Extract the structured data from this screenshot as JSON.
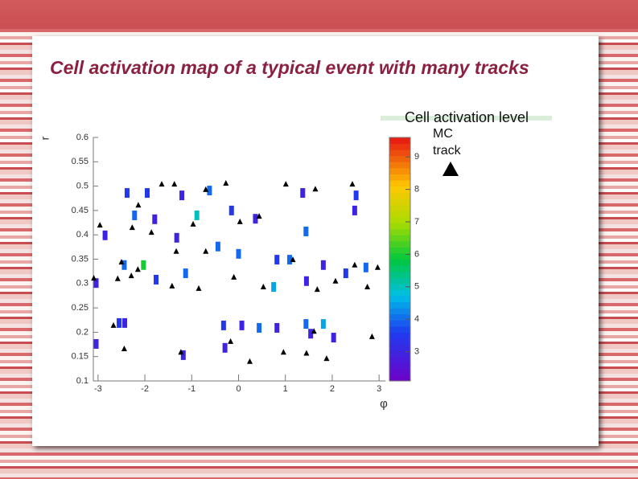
{
  "title": "Cell activation map of a typical event with many tracks",
  "chart_data": {
    "type": "scatter",
    "x_label": "φ",
    "y_label": "r",
    "xlim": [
      -3.14,
      3.14
    ],
    "xticks": [
      -3,
      -2,
      -1,
      0,
      1,
      2,
      3
    ],
    "ylim": [
      0.1,
      0.6
    ],
    "yticks": [
      0.1,
      0.15,
      0.2,
      0.25,
      0.3,
      0.35,
      0.4,
      0.45,
      0.5,
      0.55,
      0.6
    ],
    "series": [
      {
        "name": "MC track",
        "color": "#000000",
        "marker": "triangle",
        "x": [
          -1.64,
          -1.37,
          -0.27,
          1.01,
          1.64,
          2.43,
          -0.7,
          -2.14,
          -2.96,
          -2.27,
          -1.86,
          -0.97,
          0.03,
          0.44,
          -0.7,
          -1.33,
          1.16,
          2.48,
          2.97,
          -2.5,
          -2.15,
          -3.09,
          -2.58,
          -2.29,
          -1.42,
          -0.85,
          -0.1,
          0.53,
          1.68,
          2.07,
          2.75,
          -2.67,
          -2.44,
          -1.23,
          -0.17,
          0.24,
          0.96,
          1.61,
          1.45,
          1.88,
          2.85
        ],
        "values": [
          0.504,
          0.504,
          0.506,
          0.504,
          0.494,
          0.504,
          0.493,
          0.461,
          0.42,
          0.415,
          0.405,
          0.422,
          0.427,
          0.438,
          0.366,
          0.366,
          0.349,
          0.338,
          0.333,
          0.344,
          0.329,
          0.311,
          0.31,
          0.316,
          0.295,
          0.29,
          0.313,
          0.293,
          0.288,
          0.305,
          0.293,
          0.214,
          0.166,
          0.159,
          0.181,
          0.14,
          0.159,
          0.202,
          0.157,
          0.146,
          0.191
        ]
      }
    ],
    "cells": {
      "x": [
        -2.38,
        -1.95,
        -1.21,
        -0.62,
        1.37,
        2.51,
        -2.22,
        -1.79,
        -0.89,
        -0.15,
        0.36,
        2.48,
        -2.85,
        -1.32,
        -0.44,
        1.44,
        0,
        -2.03,
        -2.44,
        -1.13,
        0.82,
        1.09,
        1.45,
        1.81,
        2.29,
        2.72,
        -3.04,
        -1.76,
        0.75,
        -2.55,
        -2.43,
        -0.32,
        0.07,
        0.44,
        0.82,
        1.44,
        1.81,
        1.54,
        2.03,
        -0.29,
        -1.18,
        -3.04
      ],
      "values": [
        0.486,
        0.486,
        0.481,
        0.491,
        0.486,
        0.481,
        0.44,
        0.432,
        0.44,
        0.45,
        0.433,
        0.45,
        0.399,
        0.394,
        0.376,
        0.407,
        0.361,
        0.338,
        0.338,
        0.321,
        0.349,
        0.349,
        0.305,
        0.338,
        0.321,
        0.333,
        0.301,
        0.308,
        0.293,
        0.219,
        0.219,
        0.214,
        0.214,
        0.209,
        0.209,
        0.217,
        0.217,
        0.197,
        0.189,
        0.168,
        0.153,
        0.176
      ],
      "levels": [
        3.5,
        3.5,
        3,
        4,
        3,
        3.5,
        4,
        3,
        5,
        3.5,
        3,
        3,
        3,
        3,
        4,
        4,
        4,
        6,
        4,
        4,
        3.5,
        4,
        3,
        3,
        3.5,
        4,
        3,
        3.5,
        4.5,
        3.5,
        3,
        3.5,
        3,
        4,
        3,
        4,
        4.5,
        3,
        3,
        3,
        3,
        3
      ]
    },
    "colorbar": {
      "title": "Cell activation level",
      "zlim": [
        2.1,
        9.6
      ],
      "zticks": [
        3,
        4,
        5,
        6,
        7,
        8,
        9
      ]
    }
  }
}
